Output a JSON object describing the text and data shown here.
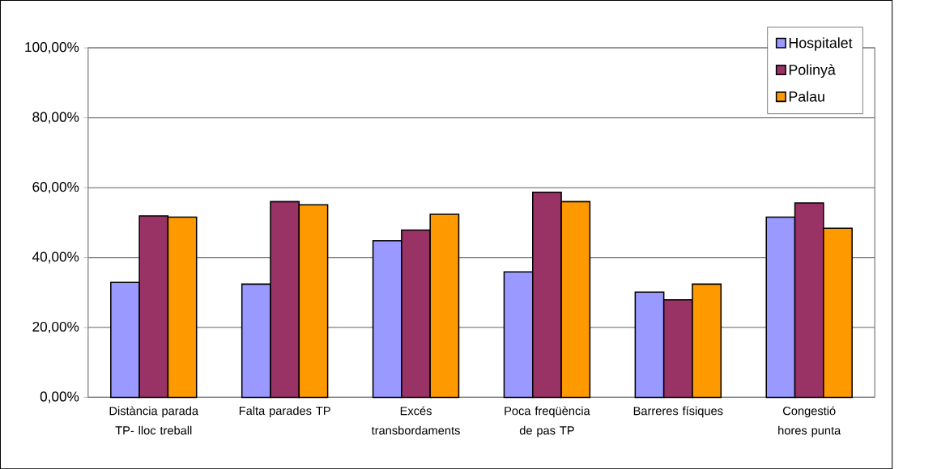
{
  "chart_data": {
    "type": "bar",
    "categories": [
      "Distància parada TP- lloc treball",
      "Falta parades TP",
      "Excés transbordaments",
      "Poca freqüència de pas TP",
      "Barreres físiques",
      "Congestió hores punta"
    ],
    "series": [
      {
        "name": "Hospitalet",
        "color": "#9999ff",
        "values": [
          32.9,
          32.4,
          44.8,
          35.9,
          30.1,
          51.6
        ]
      },
      {
        "name": "Polinyà",
        "color": "#993366",
        "values": [
          51.9,
          56.0,
          47.9,
          58.7,
          27.9,
          55.6
        ]
      },
      {
        "name": "Palau",
        "color": "#ff9900",
        "values": [
          51.6,
          55.1,
          52.4,
          56.0,
          32.4,
          48.4
        ]
      }
    ],
    "ylim": [
      0,
      100
    ],
    "yticks": [
      {
        "value": 0,
        "label": "0,00%"
      },
      {
        "value": 20,
        "label": "20,00%"
      },
      {
        "value": 40,
        "label": "40,00%"
      },
      {
        "value": 60,
        "label": "60,00%"
      },
      {
        "value": 80,
        "label": "80,00%"
      },
      {
        "value": 100,
        "label": "100,00%"
      }
    ],
    "grid": "y",
    "legend": "top right"
  }
}
